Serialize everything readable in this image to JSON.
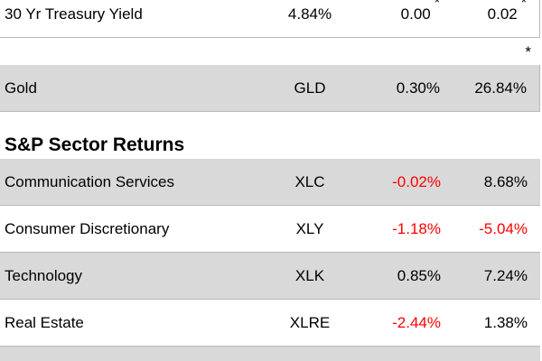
{
  "rows": [
    {
      "cells": [
        "30 Yr Treasury Yield",
        "4.84%",
        "0.00",
        "0.02"
      ],
      "marks": {
        "2": "*",
        "3": "*"
      },
      "shaded": false
    },
    {
      "cells": [
        "Gold",
        "GLD",
        "0.30%",
        "26.84%"
      ],
      "mark_above": "*",
      "shaded": true
    }
  ],
  "section": {
    "title": "S&P Sector Returns",
    "rows": [
      {
        "cells": [
          "Communication Services",
          "XLC",
          "-0.02%",
          "8.68%"
        ],
        "shaded": true
      },
      {
        "cells": [
          "Consumer Discretionary",
          "XLY",
          "-1.18%",
          "-5.04%"
        ],
        "shaded": false
      },
      {
        "cells": [
          "Technology",
          "XLK",
          "0.85%",
          "7.24%"
        ],
        "shaded": true
      },
      {
        "cells": [
          "Real Estate",
          "XLRE",
          "-2.44%",
          "1.38%"
        ],
        "shaded": false
      }
    ]
  }
}
